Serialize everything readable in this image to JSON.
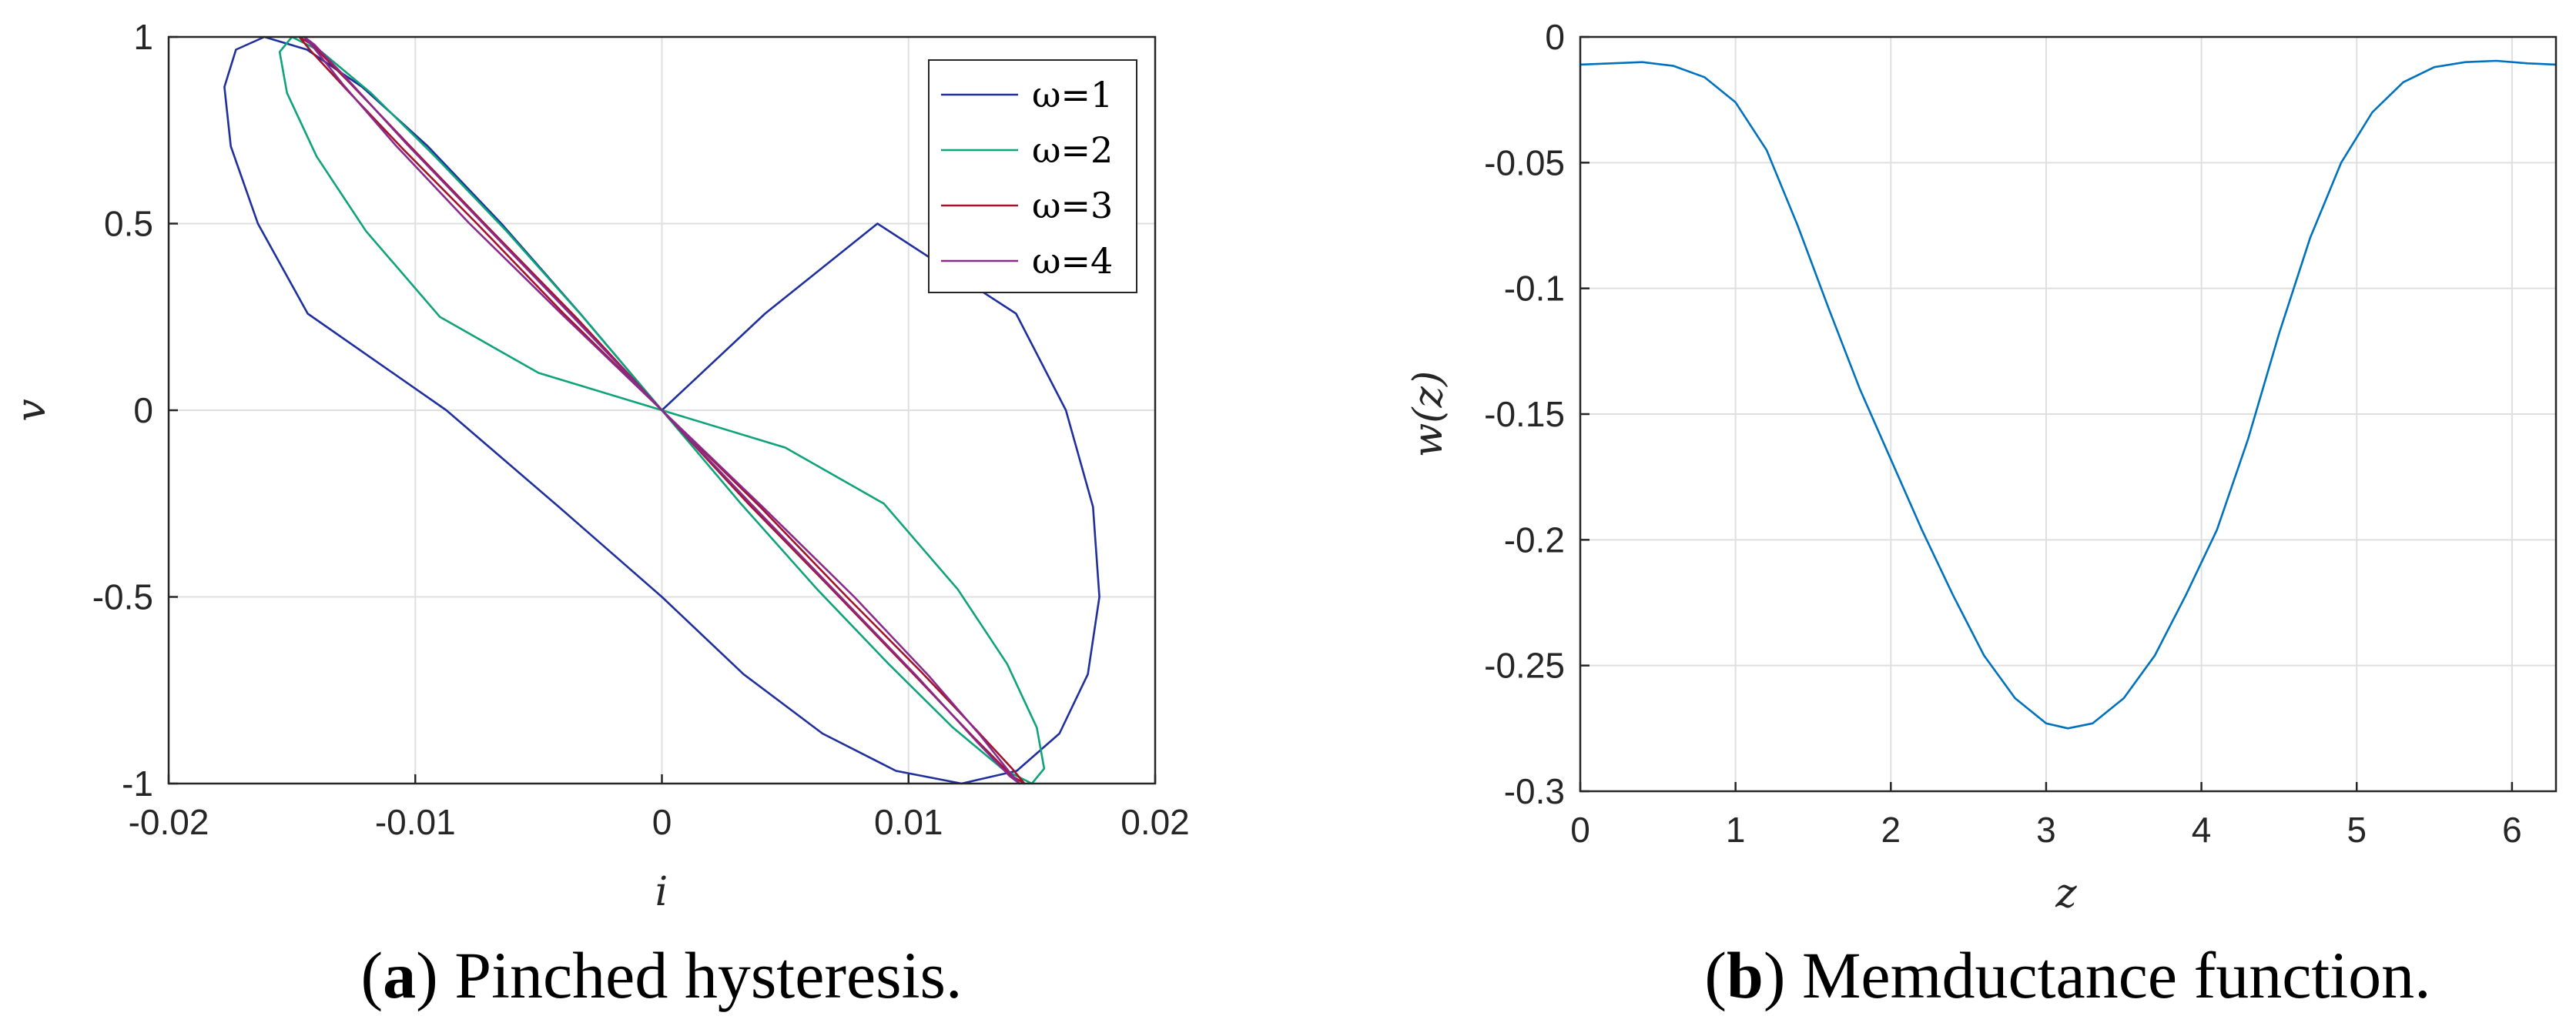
{
  "chart_data": [
    {
      "id": "a",
      "type": "line",
      "title": "",
      "xlabel": "i",
      "ylabel": "v",
      "xlim": [
        -0.02,
        0.02
      ],
      "ylim": [
        -1,
        1
      ],
      "xticks": [
        -0.02,
        -0.01,
        0,
        0.01,
        0.02
      ],
      "xtick_labels": [
        "-0.02",
        "-0.01",
        "0",
        "0.01",
        "0.02"
      ],
      "yticks": [
        -1,
        -0.5,
        0,
        0.5,
        1
      ],
      "ytick_labels": [
        "-1",
        "-0.5",
        "0",
        "0.5",
        "1"
      ],
      "grid": true,
      "legend_position": "top-right",
      "series": [
        {
          "name": "ω=1",
          "omega": 1,
          "color": "#1f2f9e",
          "x": [
            0,
            -0.00331,
            -0.00651,
            -0.00949,
            -0.01215,
            -0.01439,
            -0.01612,
            -0.01727,
            -0.01774,
            -0.01748,
            -0.01638,
            -0.01436,
            -0.00874,
            -0.00418,
            0,
            0.00331,
            0.00651,
            0.00949,
            0.01215,
            0.01439,
            0.01612,
            0.01727,
            0.01774,
            0.01748,
            0.01638,
            0.01436,
            0.00874,
            0.00418,
            0
          ],
          "y": [
            0,
            0.2588,
            0.5,
            0.7071,
            0.866,
            0.9659,
            1,
            0.9659,
            0.866,
            0.7071,
            0.5,
            0.2588,
            0,
            -0.2588,
            -0.5,
            -0.7071,
            -0.866,
            -0.9659,
            -1,
            -0.9659,
            -0.866,
            -0.7071,
            -0.5,
            -0.2588,
            0,
            0.2588,
            0.5,
            0.2588,
            0
          ]
        },
        {
          "name": "ω=2",
          "omega": 2,
          "color": "#0fa37a",
          "x": [
            0,
            -0.0032,
            -0.0063,
            -0.0092,
            -0.0118,
            -0.0138,
            -0.015,
            -0.0155,
            -0.0152,
            -0.014,
            -0.012,
            -0.009,
            -0.005,
            0,
            0.0032,
            0.0063,
            0.0092,
            0.0118,
            0.0138,
            0.015,
            0.0155,
            0.0152,
            0.014,
            0.012,
            0.009,
            0.005,
            0
          ],
          "y": [
            0,
            0.25,
            0.48,
            0.68,
            0.85,
            0.96,
            1,
            0.96,
            0.85,
            0.68,
            0.48,
            0.25,
            0.1,
            0,
            -0.25,
            -0.48,
            -0.68,
            -0.85,
            -0.96,
            -1,
            -0.96,
            -0.85,
            -0.68,
            -0.48,
            -0.25,
            -0.1,
            0
          ]
        },
        {
          "name": "ω=3",
          "omega": 3,
          "color": "#a3132b",
          "x": [
            0,
            -0.0035,
            -0.0069,
            -0.0101,
            -0.0127,
            -0.0142,
            -0.0147,
            -0.0142,
            -0.0128,
            -0.0105,
            -0.0075,
            -0.004,
            0,
            0.0035,
            0.0069,
            0.0101,
            0.0127,
            0.0142,
            0.0147,
            0.0142,
            0.0128,
            0.0105,
            0.0075,
            0.004,
            0
          ],
          "y": [
            0,
            0.25,
            0.48,
            0.7,
            0.88,
            0.98,
            1,
            0.96,
            0.86,
            0.7,
            0.5,
            0.26,
            0,
            -0.25,
            -0.48,
            -0.7,
            -0.88,
            -0.98,
            -1,
            -0.96,
            -0.86,
            -0.7,
            -0.5,
            -0.26,
            0
          ]
        },
        {
          "name": "ω=4",
          "omega": 4,
          "color": "#8a2a8a",
          "x": [
            0,
            -0.0036,
            -0.0071,
            -0.0103,
            -0.0128,
            -0.0141,
            -0.0145,
            -0.0141,
            -0.0129,
            -0.0108,
            -0.0078,
            -0.0041,
            0,
            0.0036,
            0.0071,
            0.0103,
            0.0128,
            0.0141,
            0.0145,
            0.0141,
            0.0129,
            0.0108,
            0.0078,
            0.0041,
            0
          ],
          "y": [
            0,
            0.25,
            0.49,
            0.71,
            0.89,
            0.98,
            1,
            0.97,
            0.87,
            0.71,
            0.5,
            0.26,
            0,
            -0.25,
            -0.49,
            -0.71,
            -0.89,
            -0.98,
            -1,
            -0.97,
            -0.87,
            -0.71,
            -0.5,
            -0.26,
            0
          ]
        }
      ]
    },
    {
      "id": "b",
      "type": "line",
      "title": "",
      "xlabel": "z",
      "ylabel": "w(z)",
      "xlim": [
        0,
        6.2832
      ],
      "ylim": [
        -0.3,
        0
      ],
      "xticks": [
        0,
        1,
        2,
        3,
        4,
        5,
        6
      ],
      "xtick_labels": [
        "0",
        "1",
        "2",
        "3",
        "4",
        "5",
        "6"
      ],
      "yticks": [
        0,
        -0.05,
        -0.1,
        -0.15,
        -0.2,
        -0.25,
        -0.3
      ],
      "ytick_labels": [
        "0",
        "-0.05",
        "-0.1",
        "-0.15",
        "-0.2",
        "-0.25",
        "-0.3"
      ],
      "grid": true,
      "series": [
        {
          "name": "w(z)",
          "color": "#0072bd",
          "x": [
            0,
            0.2,
            0.4,
            0.6,
            0.8,
            1.0,
            1.2,
            1.4,
            1.6,
            1.8,
            2.0,
            2.2,
            2.4,
            2.6,
            2.8,
            3.0,
            3.14,
            3.3,
            3.5,
            3.7,
            3.9,
            4.1,
            4.3,
            4.5,
            4.7,
            4.9,
            5.1,
            5.3,
            5.5,
            5.7,
            5.9,
            6.1,
            6.2832
          ],
          "y": [
            -0.011,
            -0.0105,
            -0.01,
            -0.0115,
            -0.016,
            -0.026,
            -0.045,
            -0.075,
            -0.108,
            -0.14,
            -0.168,
            -0.196,
            -0.222,
            -0.246,
            -0.263,
            -0.273,
            -0.275,
            -0.273,
            -0.263,
            -0.246,
            -0.222,
            -0.196,
            -0.16,
            -0.118,
            -0.08,
            -0.05,
            -0.03,
            -0.018,
            -0.012,
            -0.01,
            -0.0095,
            -0.0105,
            -0.011
          ]
        }
      ]
    }
  ],
  "captions": {
    "a_letter": "a",
    "a_text": "Pinched hysteresis.",
    "b_letter": "b",
    "b_text": "Memductance function."
  }
}
